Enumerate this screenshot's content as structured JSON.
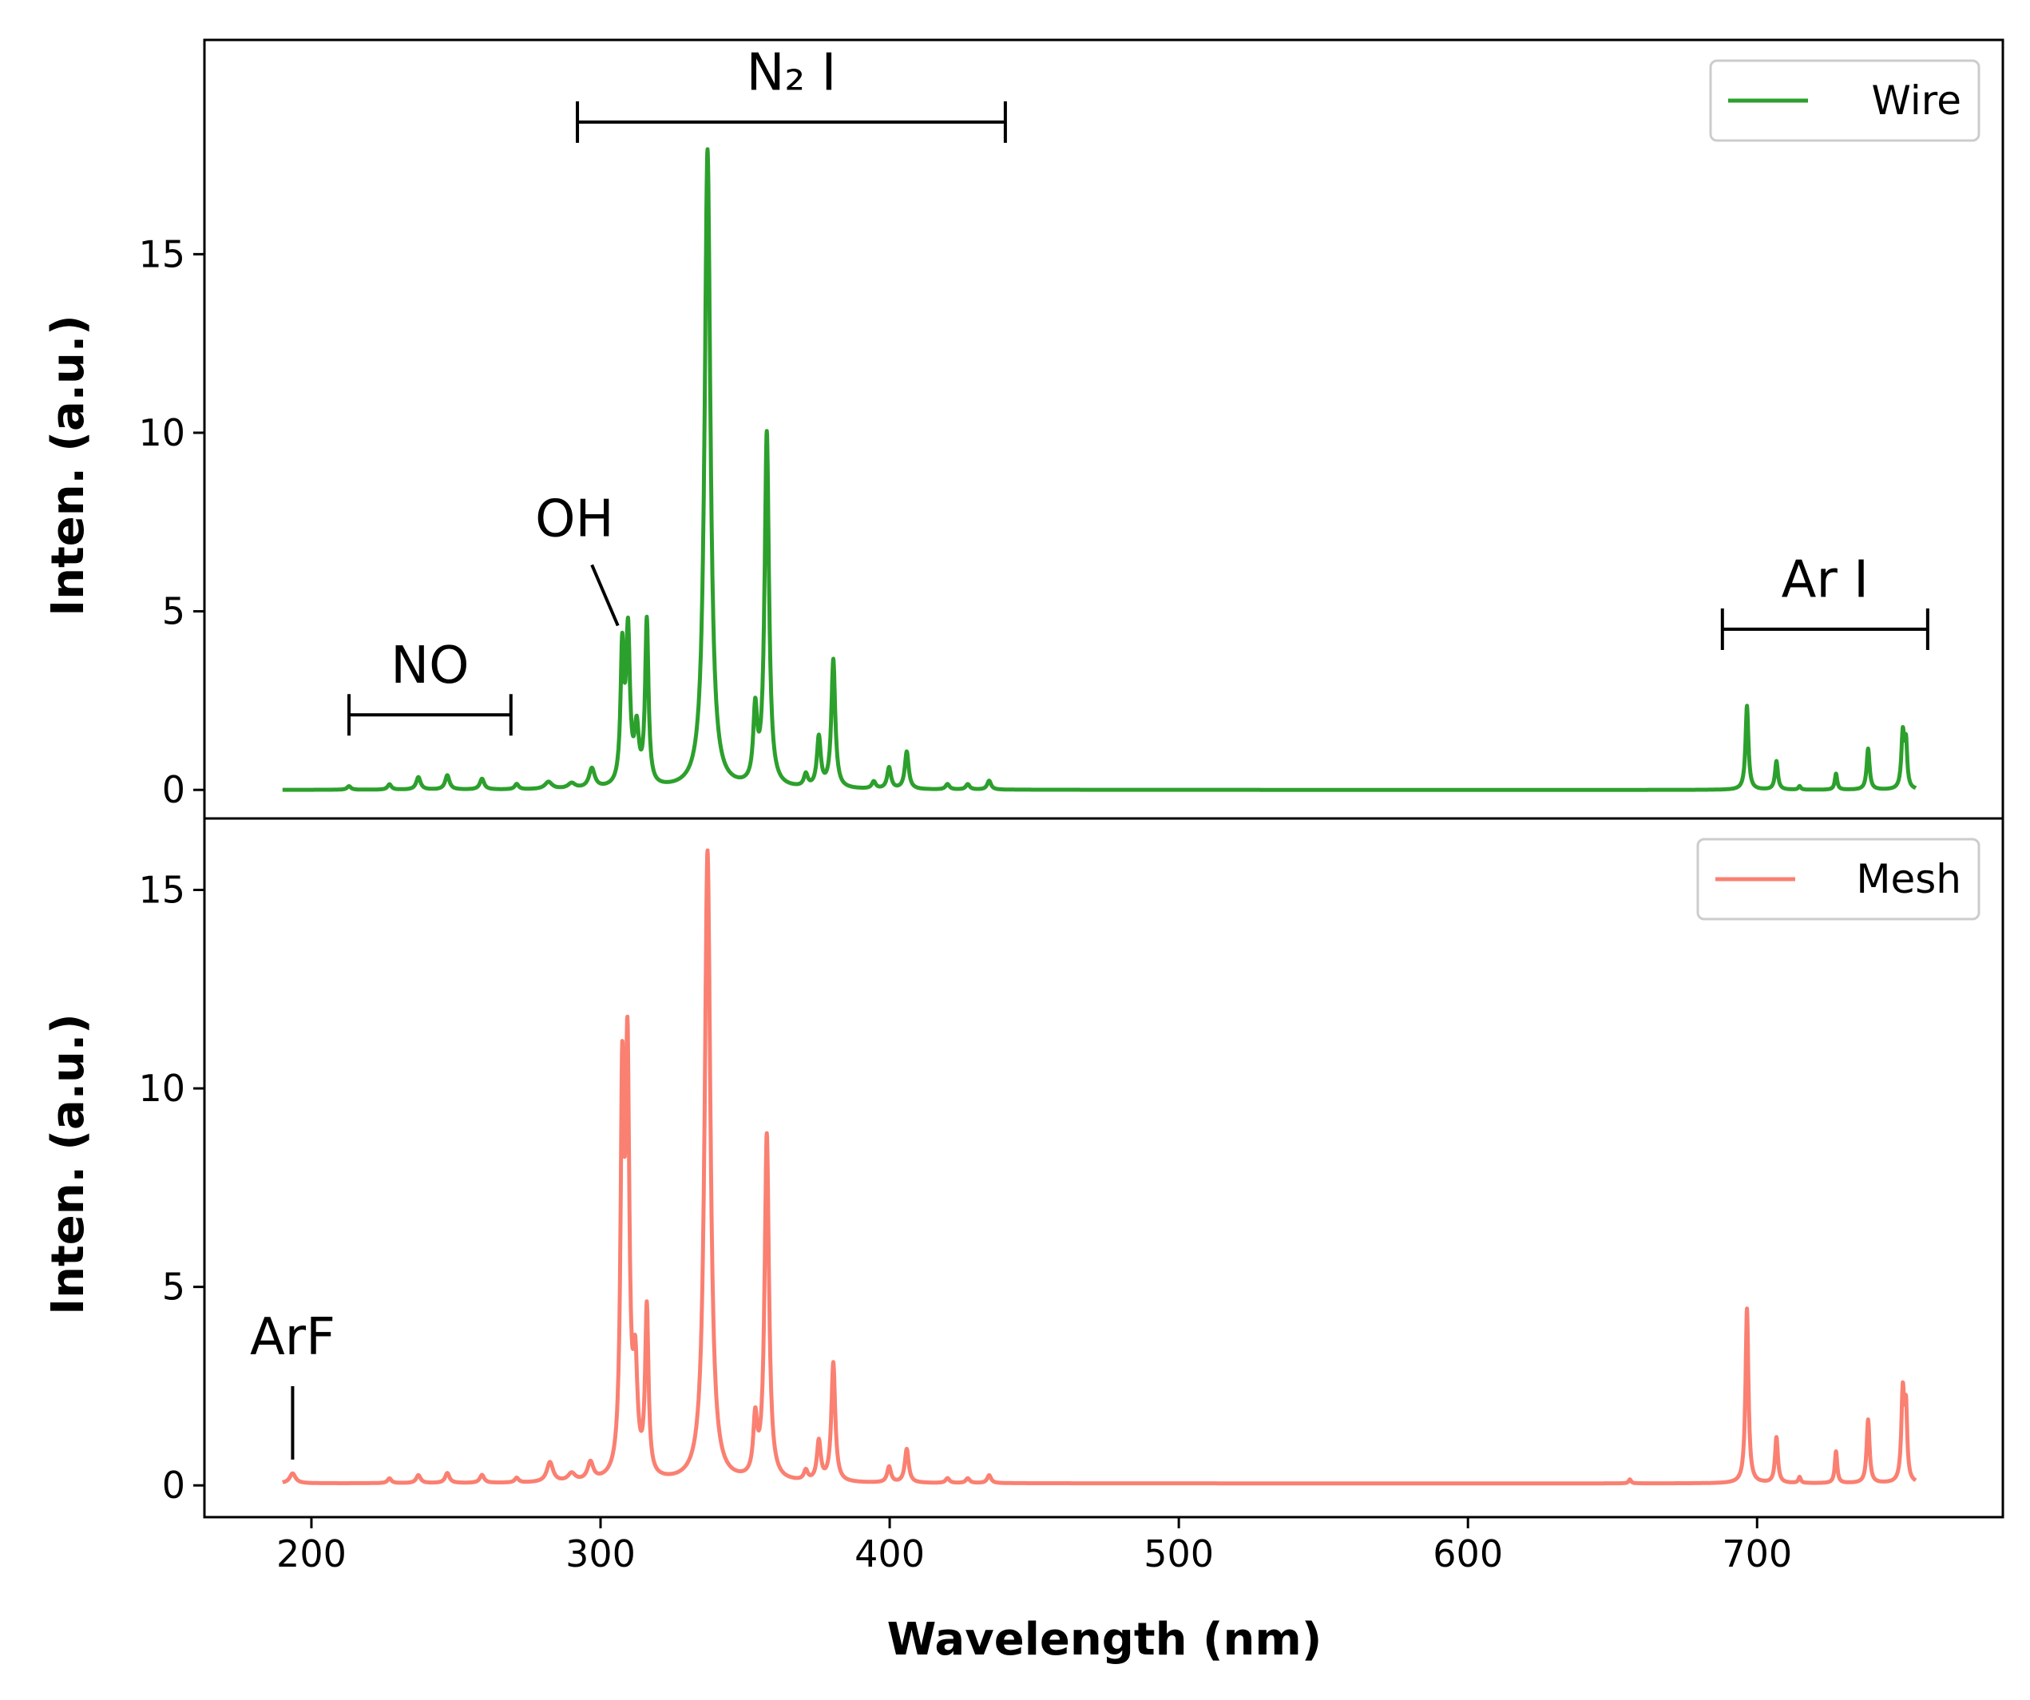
{
  "chart_data": {
    "type": "line",
    "xlabel": "Wavelength (nm)",
    "xlim": [
      163,
      785
    ],
    "xticks": [
      200,
      300,
      400,
      500,
      600,
      700
    ],
    "panels": [
      {
        "id": "top",
        "ylabel": "Inten. (a.u.)",
        "ylim": [
          -0.8,
          21
        ],
        "yticks": [
          0,
          5,
          10,
          15
        ],
        "legend_position": "top-right",
        "series": {
          "name": "Wire",
          "color": "#2ca02c",
          "baseline": 0.0,
          "x_range": [
            190,
            755
          ],
          "peaks": [
            {
              "x": 213,
              "h": 0.1,
              "w": 0.8
            },
            {
              "x": 227,
              "h": 0.15,
              "w": 0.8
            },
            {
              "x": 237,
              "h": 0.35,
              "w": 0.9
            },
            {
              "x": 247,
              "h": 0.4,
              "w": 0.9
            },
            {
              "x": 259,
              "h": 0.3,
              "w": 0.9
            },
            {
              "x": 271,
              "h": 0.15,
              "w": 0.8
            },
            {
              "x": 282,
              "h": 0.2,
              "w": 1.5
            },
            {
              "x": 290,
              "h": 0.15,
              "w": 1.5
            },
            {
              "x": 297,
              "h": 0.55,
              "w": 1.2
            },
            {
              "x": 307.5,
              "h": 3.7,
              "w": 0.7
            },
            {
              "x": 309.5,
              "h": 4.2,
              "w": 0.8
            },
            {
              "x": 312.5,
              "h": 1.5,
              "w": 0.9
            },
            {
              "x": 316,
              "h": 4.6,
              "w": 0.7
            },
            {
              "x": 337,
              "h": 17.9,
              "w": 1.2
            },
            {
              "x": 353.5,
              "h": 2.0,
              "w": 0.8
            },
            {
              "x": 357.5,
              "h": 9.9,
              "w": 0.9
            },
            {
              "x": 371,
              "h": 0.35,
              "w": 0.8
            },
            {
              "x": 375.5,
              "h": 1.4,
              "w": 0.8
            },
            {
              "x": 380.5,
              "h": 3.6,
              "w": 0.8
            },
            {
              "x": 394.5,
              "h": 0.2,
              "w": 0.8
            },
            {
              "x": 399.8,
              "h": 0.6,
              "w": 0.8
            },
            {
              "x": 405.9,
              "h": 1.05,
              "w": 0.8
            },
            {
              "x": 420,
              "h": 0.15,
              "w": 0.8
            },
            {
              "x": 427,
              "h": 0.15,
              "w": 0.8
            },
            {
              "x": 434.4,
              "h": 0.25,
              "w": 0.8
            },
            {
              "x": 696.5,
              "h": 2.35,
              "w": 0.6
            },
            {
              "x": 706.7,
              "h": 0.8,
              "w": 0.6
            },
            {
              "x": 714.7,
              "h": 0.1,
              "w": 0.5
            },
            {
              "x": 727.3,
              "h": 0.45,
              "w": 0.5
            },
            {
              "x": 738.4,
              "h": 1.15,
              "w": 0.6
            },
            {
              "x": 750.4,
              "h": 1.55,
              "w": 0.6
            },
            {
              "x": 751.5,
              "h": 1.2,
              "w": 0.5
            }
          ]
        },
        "annotations": [
          {
            "label": "NO",
            "kind": "bracket",
            "x_start": 213,
            "x_end": 269,
            "y": 2.1,
            "text_y": 3.0
          },
          {
            "label": "N₂ I",
            "kind": "bracket",
            "x_start": 292,
            "x_end": 440,
            "y": 18.7,
            "text_y": 19.6
          },
          {
            "label": "Ar I",
            "kind": "bracket",
            "x_start": 688,
            "x_end": 759,
            "y": 4.5,
            "text_y": 5.4
          },
          {
            "label": "OH",
            "kind": "pointer",
            "from_x": 297,
            "from_y": 6.3,
            "to_x": 306,
            "to_y": 4.6,
            "text_x": 291,
            "text_y": 7.1
          }
        ]
      },
      {
        "id": "bottom",
        "ylabel": "Inten. (a.u.)",
        "ylim": [
          -0.8,
          16.8
        ],
        "yticks": [
          0,
          5,
          10,
          15
        ],
        "legend_position": "top-right",
        "series": {
          "name": "Mesh",
          "color": "#fa8072",
          "baseline": 0.05,
          "x_range": [
            190,
            755
          ],
          "peaks": [
            {
              "x": 193.5,
              "h": 0.25,
              "w": 1.2
            },
            {
              "x": 227,
              "h": 0.12,
              "w": 0.8
            },
            {
              "x": 237,
              "h": 0.2,
              "w": 0.9
            },
            {
              "x": 247,
              "h": 0.25,
              "w": 0.9
            },
            {
              "x": 259,
              "h": 0.2,
              "w": 0.9
            },
            {
              "x": 271,
              "h": 0.12,
              "w": 0.8
            },
            {
              "x": 282.5,
              "h": 0.5,
              "w": 1.3
            },
            {
              "x": 290,
              "h": 0.2,
              "w": 1.5
            },
            {
              "x": 296.5,
              "h": 0.45,
              "w": 1.2
            },
            {
              "x": 307.5,
              "h": 9.3,
              "w": 0.7
            },
            {
              "x": 309.3,
              "h": 10.2,
              "w": 0.8
            },
            {
              "x": 312,
              "h": 2.5,
              "w": 0.9
            },
            {
              "x": 316,
              "h": 4.2,
              "w": 0.7
            },
            {
              "x": 337,
              "h": 15.9,
              "w": 1.2
            },
            {
              "x": 353.5,
              "h": 1.4,
              "w": 0.8
            },
            {
              "x": 357.5,
              "h": 8.7,
              "w": 0.9
            },
            {
              "x": 371,
              "h": 0.25,
              "w": 0.8
            },
            {
              "x": 375.5,
              "h": 1.0,
              "w": 0.8
            },
            {
              "x": 380.5,
              "h": 3.0,
              "w": 0.8
            },
            {
              "x": 399.8,
              "h": 0.4,
              "w": 0.8
            },
            {
              "x": 405.9,
              "h": 0.85,
              "w": 0.8
            },
            {
              "x": 420,
              "h": 0.12,
              "w": 0.8
            },
            {
              "x": 427,
              "h": 0.12,
              "w": 0.8
            },
            {
              "x": 434.4,
              "h": 0.2,
              "w": 0.8
            },
            {
              "x": 656,
              "h": 0.1,
              "w": 0.5
            },
            {
              "x": 696.5,
              "h": 4.4,
              "w": 0.6
            },
            {
              "x": 706.7,
              "h": 1.15,
              "w": 0.6
            },
            {
              "x": 714.7,
              "h": 0.15,
              "w": 0.5
            },
            {
              "x": 727.3,
              "h": 0.8,
              "w": 0.5
            },
            {
              "x": 738.4,
              "h": 1.6,
              "w": 0.6
            },
            {
              "x": 750.4,
              "h": 2.25,
              "w": 0.6
            },
            {
              "x": 751.5,
              "h": 1.7,
              "w": 0.5
            }
          ]
        },
        "annotations": [
          {
            "label": "ArF",
            "kind": "pointer",
            "from_x": 193.5,
            "from_y": 2.5,
            "to_x": 193.5,
            "to_y": 0.65,
            "text_x": 193.5,
            "text_y": 3.3
          }
        ]
      }
    ]
  }
}
